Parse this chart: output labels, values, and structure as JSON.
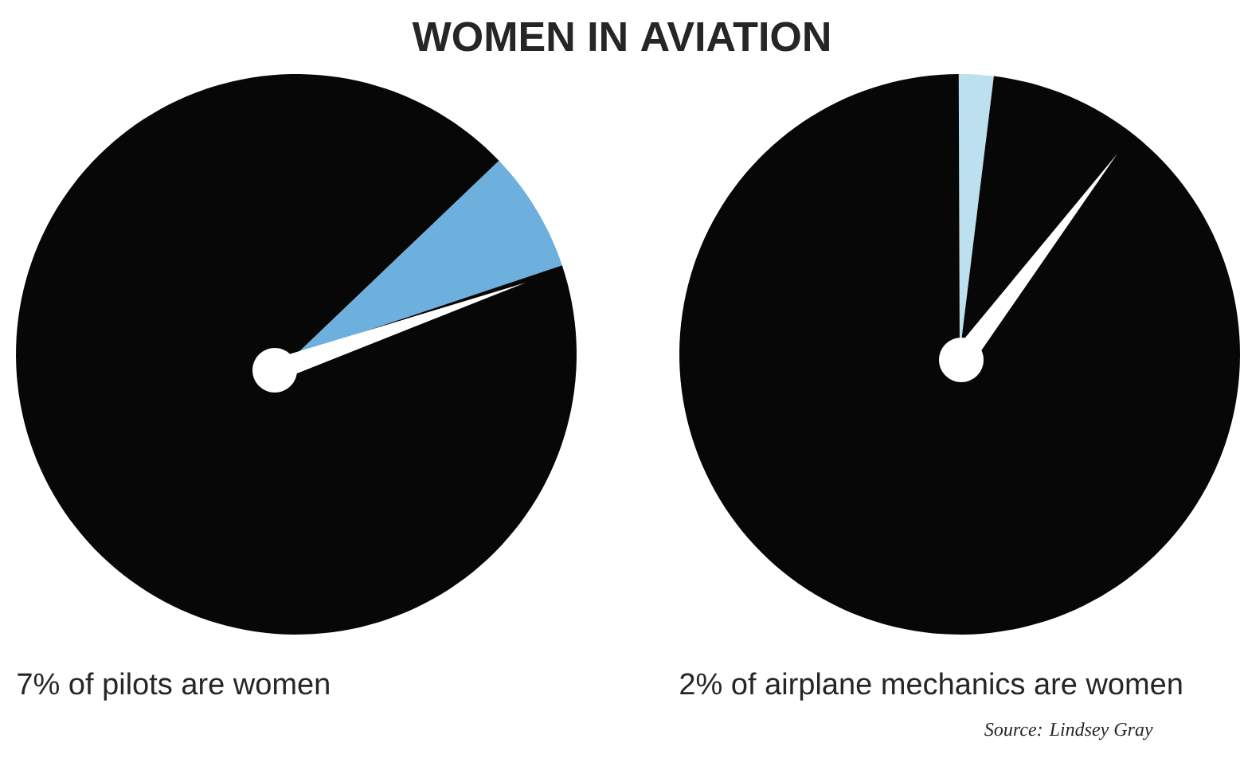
{
  "chart_data": [
    {
      "type": "pie",
      "title": "WOMEN IN AVIATION",
      "categories": [
        null,
        null
      ],
      "values": [
        7,
        93
      ],
      "colors": [
        "#6eb0dd",
        "#070707"
      ],
      "annotations": [
        "7% of pilots are women"
      ]
    },
    {
      "type": "pie",
      "categories": [
        null,
        null
      ],
      "values": [
        2,
        98
      ],
      "colors": [
        "#bde0ee",
        "#070707"
      ],
      "annotations": [
        "2% of airplane mechanics are women",
        "Source: Lindsey Gray"
      ]
    }
  ]
}
